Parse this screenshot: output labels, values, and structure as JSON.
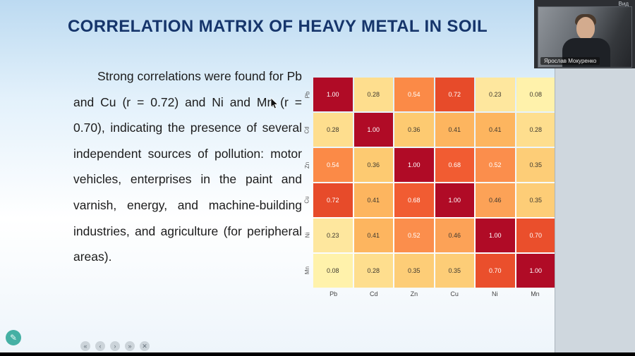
{
  "colors": {
    "title_text": "#16356b",
    "slide_top": "#bcdaf1",
    "pencil_accent": "#27a394",
    "heatmap_max": "#b00b26"
  },
  "slide": {
    "title": "CORRELATION MATRIX OF HEAVY METAL IN SOIL",
    "paragraph": "Strong correlations were found for Pb and Cu (r = 0.72) and Ni and Mn (r = 0.70), indicating the presence of several independent sources of pollution: motor vehicles, enterprises in the paint and varnish, energy, and machine-building industries, and agriculture (for peripheral areas)."
  },
  "chart_data": {
    "type": "heatmap",
    "title": "",
    "categories": [
      "Pb",
      "Cd",
      "Zn",
      "Cu",
      "Ni",
      "Mn"
    ],
    "matrix": [
      [
        1.0,
        0.28,
        0.54,
        0.72,
        0.23,
        0.08
      ],
      [
        0.28,
        1.0,
        0.36,
        0.41,
        0.41,
        0.28
      ],
      [
        0.54,
        0.36,
        1.0,
        0.68,
        0.52,
        0.35
      ],
      [
        0.72,
        0.41,
        0.68,
        1.0,
        0.46,
        0.35
      ],
      [
        0.23,
        0.41,
        0.52,
        0.46,
        1.0,
        0.7
      ],
      [
        0.08,
        0.28,
        0.35,
        0.35,
        0.7,
        1.0
      ]
    ],
    "value_format": "0.00",
    "colormap": "YlOrRd",
    "value_colors": {
      "0.08": "#fff2ab",
      "0.23": "#fee79e",
      "0.28": "#fede8e",
      "0.35": "#fdcd77",
      "0.36": "#fdca71",
      "0.41": "#fdb55f",
      "0.46": "#fca257",
      "0.52": "#fb8e4c",
      "0.54": "#fb8a47",
      "0.68": "#f15c32",
      "0.70": "#ea4f2c",
      "0.72": "#e74b2a",
      "1.00": "#b00b26"
    },
    "light_text_threshold": 0.52,
    "light_text_color": "#ffffff",
    "dark_text_color": "#3d382f"
  },
  "zoom_ui": {
    "view_button": "Вид",
    "participant_name": "Ярослав Мокуренко",
    "pencil_glyph": "✎",
    "toolbar_buttons": [
      {
        "name": "first-slide-button",
        "glyph": "«"
      },
      {
        "name": "prev-slide-button",
        "glyph": "‹"
      },
      {
        "name": "next-slide-button",
        "glyph": "›"
      },
      {
        "name": "last-slide-button",
        "glyph": "»"
      },
      {
        "name": "close-toolbar-button",
        "glyph": "✕"
      }
    ]
  }
}
